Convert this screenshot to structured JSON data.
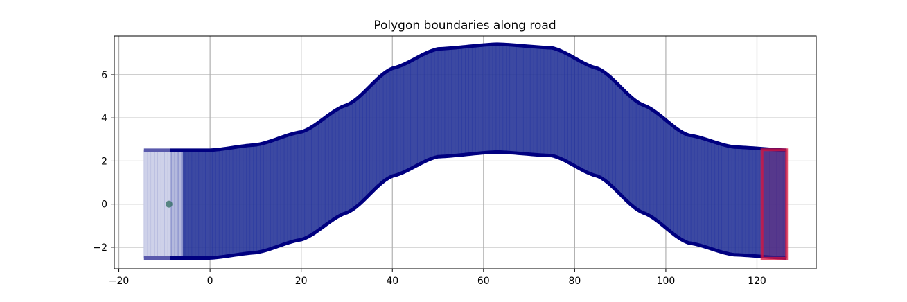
{
  "chart_data": {
    "type": "line",
    "title": "Polygon boundaries along road",
    "xlabel": "",
    "ylabel": "",
    "xlim": [
      -21,
      133
    ],
    "ylim": [
      -3.0,
      7.8
    ],
    "xticks": [
      -20,
      0,
      20,
      40,
      60,
      80,
      100,
      120
    ],
    "yticks": [
      -2,
      0,
      2,
      4,
      6
    ],
    "xtick_labels": [
      "−20",
      "0",
      "20",
      "40",
      "60",
      "80",
      "100",
      "120"
    ],
    "ytick_labels": [
      "−2",
      "0",
      "2",
      "4",
      "6"
    ],
    "grid": true,
    "legend": false,
    "road": {
      "upper_boundary": [
        [
          -14.5,
          2.5
        ],
        [
          0,
          2.5
        ],
        [
          10,
          2.75
        ],
        [
          20,
          3.35
        ],
        [
          30,
          4.6
        ],
        [
          40,
          6.3
        ],
        [
          50,
          7.2
        ],
        [
          63,
          7.42
        ],
        [
          75,
          7.25
        ],
        [
          85,
          6.3
        ],
        [
          95,
          4.6
        ],
        [
          105,
          3.2
        ],
        [
          115,
          2.65
        ],
        [
          126.5,
          2.5
        ]
      ],
      "lower_boundary": [
        [
          -14.5,
          -2.5
        ],
        [
          0,
          -2.5
        ],
        [
          10,
          -2.25
        ],
        [
          20,
          -1.65
        ],
        [
          30,
          -0.4
        ],
        [
          40,
          1.3
        ],
        [
          50,
          2.2
        ],
        [
          63,
          2.42
        ],
        [
          75,
          2.25
        ],
        [
          85,
          1.3
        ],
        [
          95,
          -0.4
        ],
        [
          105,
          -1.8
        ],
        [
          115,
          -2.35
        ],
        [
          126.5,
          -2.5
        ]
      ],
      "polygon_spacing": 0.75,
      "polygon_width": 5.7,
      "start_x": -14.5,
      "end_x": 126.5,
      "fill_color": "#2b3a9a",
      "edge_color": "#000080",
      "highlight_color": "#dc143c"
    },
    "marker": {
      "x": -9.0,
      "y": 0.0,
      "color": "#2f6b5f"
    }
  }
}
